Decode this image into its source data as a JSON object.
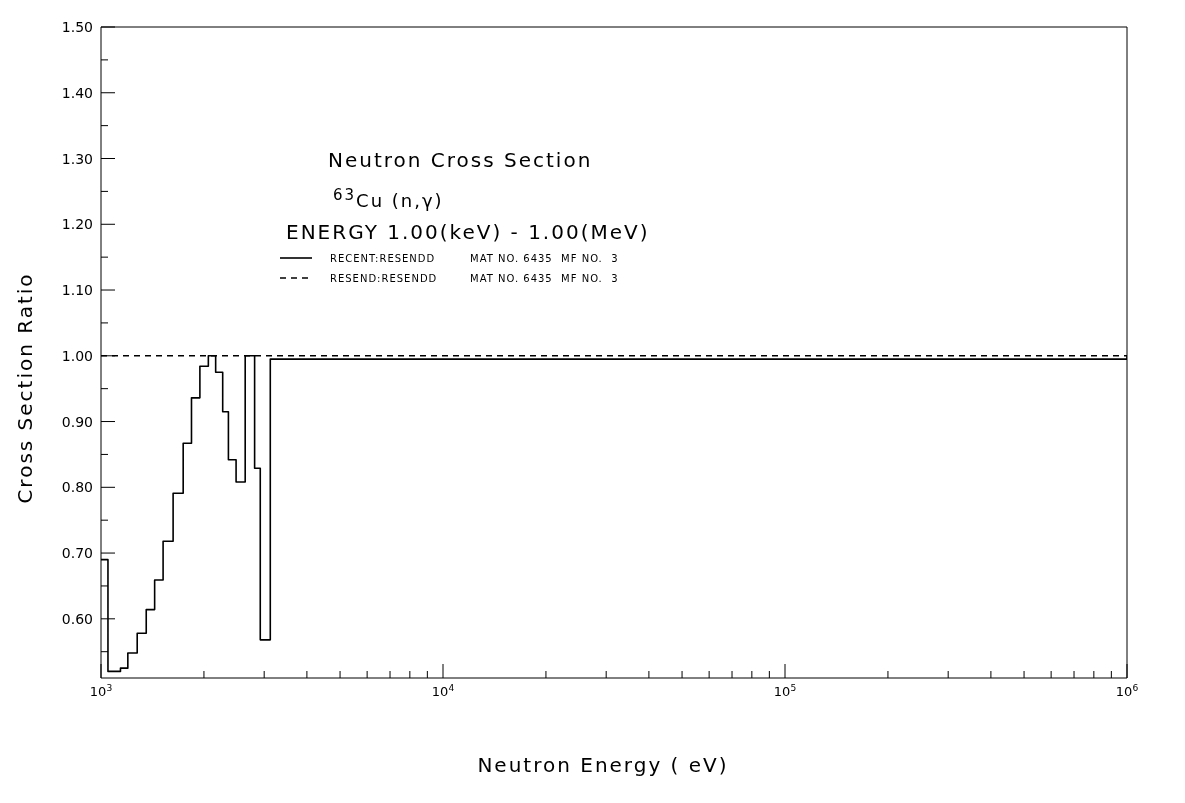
{
  "chart_data": {
    "type": "step",
    "title": "Neutron Cross Section",
    "subtitle": "$^{63}$Cu (n,γ)",
    "xlabel": "Neutron Energy ( eV)",
    "ylabel": "Cross Section Ratio",
    "annotations": [
      "ENERGY 1.00(keV) - 1.00(MeV)",
      "MAT NO. 6435  MF NO.  3",
      "MAT NO. 6435  MF NO.  3"
    ],
    "log": "x",
    "legend": "top left",
    "marker": "none",
    "xlim": [
      1000,
      1000000
    ],
    "xticks": [
      {
        "value": 1000,
        "label": "10$^{3}$"
      },
      {
        "value": 2000,
        "label": null
      },
      {
        "value": 3000,
        "label": null
      },
      {
        "value": 4000,
        "label": null
      },
      {
        "value": 5000,
        "label": null
      },
      {
        "value": 6000,
        "label": null
      },
      {
        "value": 7000,
        "label": null
      },
      {
        "value": 8000,
        "label": null
      },
      {
        "value": 9000,
        "label": null
      },
      {
        "value": 10000,
        "label": "10$^{4}$"
      },
      {
        "value": 20000,
        "label": null
      },
      {
        "value": 30000,
        "label": null
      },
      {
        "value": 40000,
        "label": null
      },
      {
        "value": 50000,
        "label": null
      },
      {
        "value": 60000,
        "label": null
      },
      {
        "value": 70000,
        "label": null
      },
      {
        "value": 80000,
        "label": null
      },
      {
        "value": 90000,
        "label": null
      },
      {
        "value": 100000,
        "label": "10$^{5}$"
      },
      {
        "value": 200000,
        "label": null
      },
      {
        "value": 300000,
        "label": null
      },
      {
        "value": 400000,
        "label": null
      },
      {
        "value": 500000,
        "label": null
      },
      {
        "value": 600000,
        "label": null
      },
      {
        "value": 700000,
        "label": null
      },
      {
        "value": 800000,
        "label": null
      },
      {
        "value": 900000,
        "label": null
      },
      {
        "value": 1000000,
        "label": "10$^{6}$"
      }
    ],
    "ylim": [
      0.51,
      1.5
    ],
    "yticks": [
      {
        "value": 0.55,
        "label": null
      },
      {
        "value": 0.6,
        "label": "0.60"
      },
      {
        "value": 0.65,
        "label": null
      },
      {
        "value": 0.7,
        "label": "0.70"
      },
      {
        "value": 0.75,
        "label": null
      },
      {
        "value": 0.8,
        "label": "0.80"
      },
      {
        "value": 0.85,
        "label": null
      },
      {
        "value": 0.9,
        "label": "0.90"
      },
      {
        "value": 0.95,
        "label": null
      },
      {
        "value": 1.0,
        "label": "1.00"
      },
      {
        "value": 1.05,
        "label": null
      },
      {
        "value": 1.1,
        "label": "1.10"
      },
      {
        "value": 1.15,
        "label": null
      },
      {
        "value": 1.2,
        "label": "1.20"
      },
      {
        "value": 1.25,
        "label": null
      },
      {
        "value": 1.3,
        "label": "1.30"
      },
      {
        "value": 1.35,
        "label": null
      },
      {
        "value": 1.4,
        "label": "1.40"
      },
      {
        "value": 1.45,
        "label": null
      },
      {
        "value": 1.5,
        "label": "1.50"
      }
    ],
    "series": [
      {
        "name": "RECENT:RESENDD",
        "color": "#000000",
        "line_style": "solid",
        "x": [
          1000,
          1048,
          1140,
          1198,
          1276,
          1356,
          1435,
          1519,
          1625,
          1739,
          1839,
          1946,
          2060,
          2164,
          2269,
          2358,
          2483,
          2640,
          2813,
          2922,
          3126,
          10000,
          100000,
          1000000
        ],
        "values": [
          0.69,
          0.52,
          0.525,
          0.548,
          0.578,
          0.614,
          0.659,
          0.718,
          0.791,
          0.867,
          0.936,
          0.984,
          1.0,
          0.975,
          0.915,
          0.842,
          0.808,
          1.0,
          0.829,
          0.568,
          0.995,
          0.995,
          0.995,
          1.0
        ]
      },
      {
        "name": "RESEND:RESENDD",
        "color": "#000000",
        "line_style": "dashed",
        "x": [
          1000,
          1000000
        ],
        "values": [
          1.0,
          1.0
        ]
      }
    ]
  }
}
